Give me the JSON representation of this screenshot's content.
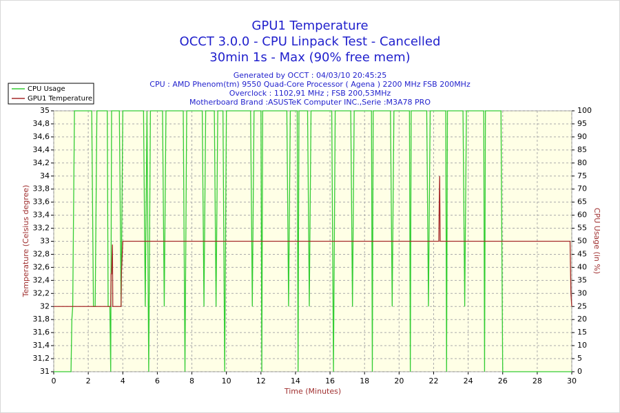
{
  "chart_data": {
    "type": "line",
    "title_lines": [
      "GPU1 Temperature",
      "OCCT 3.0.0 - CPU Linpack Test - Cancelled",
      "30min 1s - Max (90% free mem)"
    ],
    "subtitle_lines": [
      "Generated by OCCT : 04/03/10 20:45:25",
      "CPU : AMD Phenom(tm) 9550 Quad-Core Processor ( Agena ) 2200 MHz FSB 200MHz",
      "Overclock : 1102,91 MHz ; FSB 200,53MHz",
      "Motherboard Brand :ASUSTeK Computer INC.,Serie :M3A78 PRO"
    ],
    "x_label": "Time (Minutes)",
    "y_label": "Temperature (Celsius degree)",
    "y2_label": "CPU Usage (in %)",
    "xlim": [
      0,
      30
    ],
    "xticks": [
      0,
      2,
      4,
      6,
      8,
      10,
      12,
      14,
      16,
      18,
      20,
      22,
      24,
      26,
      28,
      30
    ],
    "ylim": [
      31,
      35
    ],
    "yticks": [
      31,
      {
        "value": 31.2,
        "label": "31,2"
      },
      {
        "value": 31.4,
        "label": "31,4"
      },
      {
        "value": 31.6,
        "label": "31,6"
      },
      {
        "value": 31.8,
        "label": "31,8"
      },
      32,
      {
        "value": 32.2,
        "label": "32,2"
      },
      {
        "value": 32.4,
        "label": "32,4"
      },
      {
        "value": 32.6,
        "label": "32,6"
      },
      {
        "value": 32.8,
        "label": "32,8"
      },
      33,
      {
        "value": 33.2,
        "label": "33,2"
      },
      {
        "value": 33.4,
        "label": "33,4"
      },
      {
        "value": 33.6,
        "label": "33,6"
      },
      {
        "value": 33.8,
        "label": "33,8"
      },
      34,
      {
        "value": 34.2,
        "label": "34,2"
      },
      {
        "value": 34.4,
        "label": "34,4"
      },
      {
        "value": 34.6,
        "label": "34,6"
      },
      {
        "value": 34.8,
        "label": "34,8"
      },
      35
    ],
    "y2lim": [
      0,
      100
    ],
    "y2ticks": [
      0,
      5,
      10,
      15,
      20,
      25,
      30,
      35,
      40,
      45,
      50,
      55,
      60,
      65,
      70,
      75,
      80,
      85,
      90,
      95,
      100
    ],
    "grid": true,
    "legend": "top-left",
    "series": [
      {
        "name": "CPU Usage",
        "color": "#33cc33",
        "axis": "y2",
        "x": [
          0,
          1.0,
          1.05,
          1.1,
          1.2,
          2.2,
          2.3,
          2.4,
          2.5,
          3.1,
          3.15,
          3.25,
          3.3,
          3.35,
          3.8,
          3.9,
          4.0,
          5.2,
          5.3,
          5.4,
          5.5,
          5.6,
          6.3,
          6.4,
          6.5,
          7.5,
          7.6,
          7.7,
          8.6,
          8.7,
          8.8,
          9.3,
          9.4,
          9.5,
          9.8,
          9.9,
          10.0,
          11.4,
          11.5,
          11.6,
          12.0,
          12.05,
          12.1,
          13.5,
          13.6,
          13.7,
          14.1,
          14.15,
          14.2,
          14.7,
          14.8,
          14.9,
          16.1,
          16.2,
          16.3,
          17.2,
          17.3,
          17.4,
          18.4,
          18.45,
          18.5,
          19.5,
          19.6,
          19.7,
          20.6,
          20.65,
          20.7,
          21.6,
          21.7,
          21.8,
          22.7,
          22.75,
          22.8,
          23.7,
          23.8,
          23.9,
          24.9,
          24.95,
          25.0,
          25.9,
          26.0,
          30
        ],
        "values": [
          0,
          0,
          20,
          25,
          100,
          100,
          25,
          25,
          100,
          100,
          25,
          25,
          0,
          100,
          100,
          25,
          100,
          100,
          25,
          100,
          0,
          100,
          100,
          25,
          100,
          100,
          0,
          100,
          100,
          25,
          100,
          100,
          25,
          100,
          100,
          0,
          100,
          100,
          25,
          100,
          100,
          0,
          100,
          100,
          25,
          100,
          100,
          0,
          100,
          100,
          25,
          100,
          100,
          0,
          100,
          100,
          25,
          100,
          100,
          0,
          100,
          100,
          25,
          100,
          100,
          0,
          100,
          100,
          25,
          100,
          100,
          0,
          100,
          100,
          25,
          100,
          100,
          0,
          100,
          100,
          0,
          0
        ]
      },
      {
        "name": "GPU1 Temperature",
        "color": "#a52a2a",
        "axis": "y",
        "x": [
          0,
          3.3,
          3.32,
          3.35,
          3.4,
          3.42,
          3.9,
          3.92,
          4.0,
          22.3,
          22.32,
          22.35,
          22.38,
          29.9,
          29.95,
          30
        ],
        "values": [
          32,
          32,
          32.5,
          32.5,
          32.95,
          32,
          32,
          32.5,
          33,
          33,
          33.5,
          34,
          33,
          33,
          32.2,
          32
        ]
      }
    ]
  }
}
